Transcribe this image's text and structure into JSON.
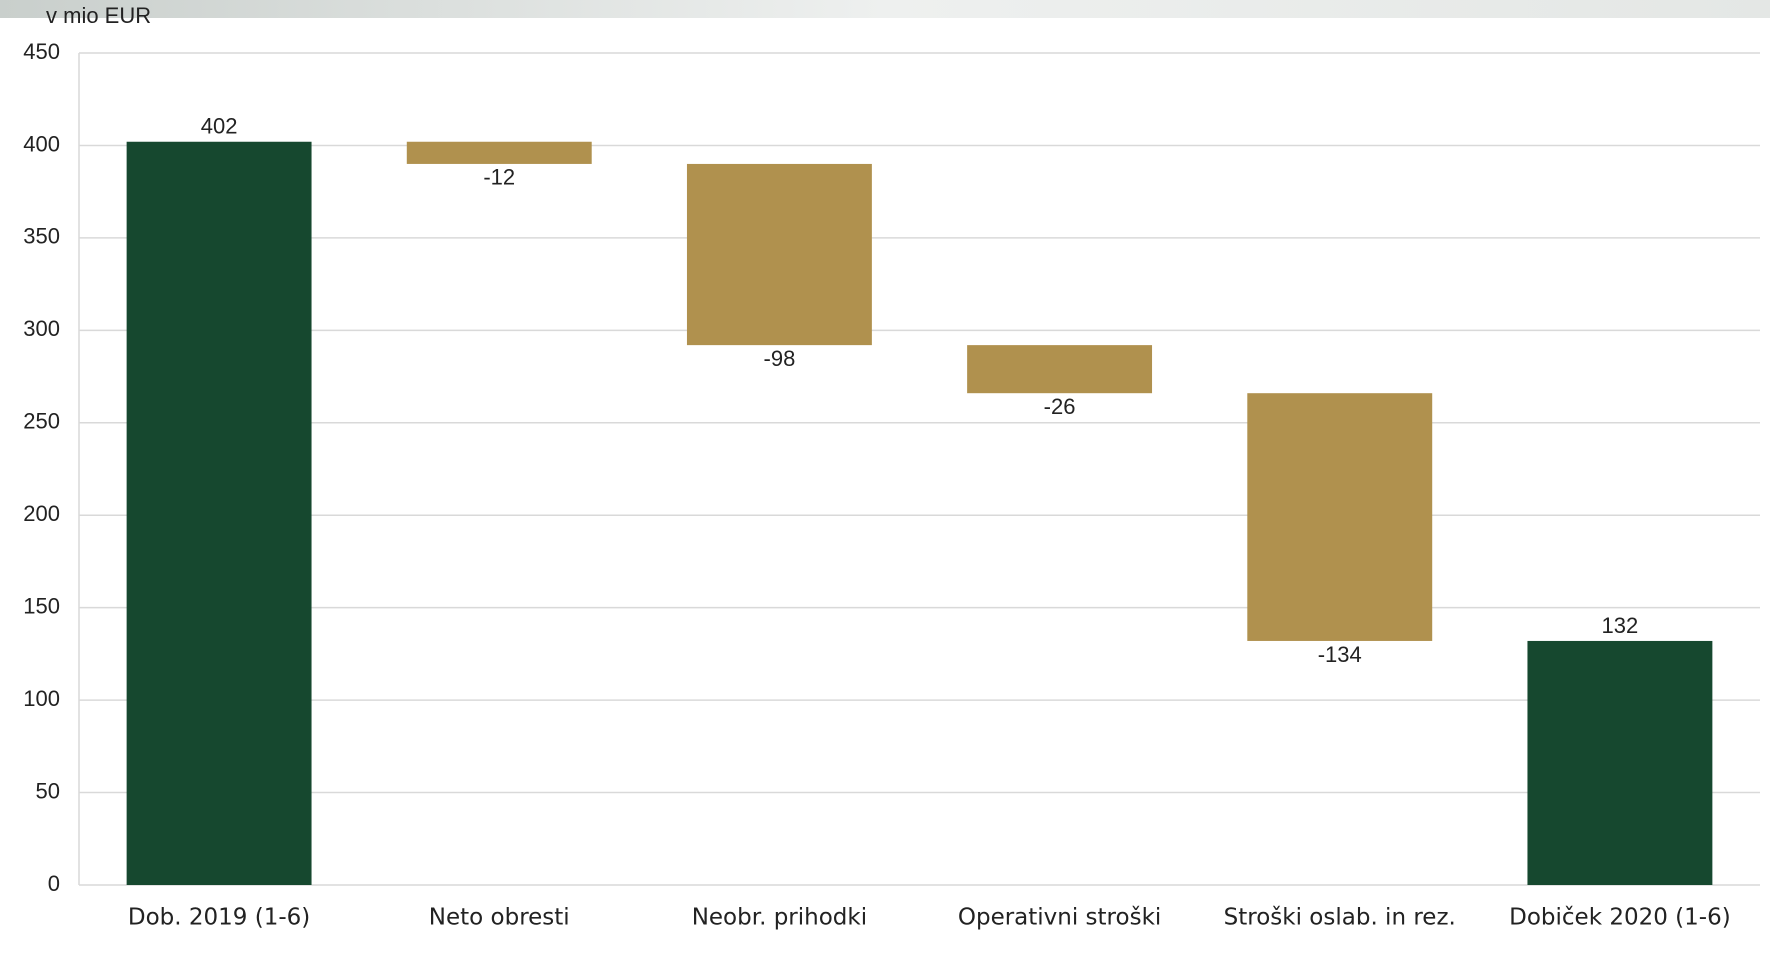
{
  "chart_data": {
    "type": "waterfall",
    "y_label": "v mio EUR",
    "categories": [
      "Dob. 2019 (1-6)",
      "Neto obresti",
      "Neobr. prihodki",
      "Operativni stroški",
      "Stroški oslab. in rez.",
      "Dobiček 2020 (1-6)"
    ],
    "values": [
      402,
      -12,
      -98,
      -26,
      -134,
      132
    ],
    "measure": [
      "total",
      "relative",
      "relative",
      "relative",
      "relative",
      "total"
    ],
    "colors": [
      "#16482f",
      "#b0914e",
      "#b0914e",
      "#b0914e",
      "#b0914e",
      "#16482f"
    ],
    "ylim": [
      0,
      450
    ],
    "yticks": [
      0,
      50,
      100,
      150,
      200,
      250,
      300,
      350,
      400,
      450
    ],
    "grid": true
  }
}
